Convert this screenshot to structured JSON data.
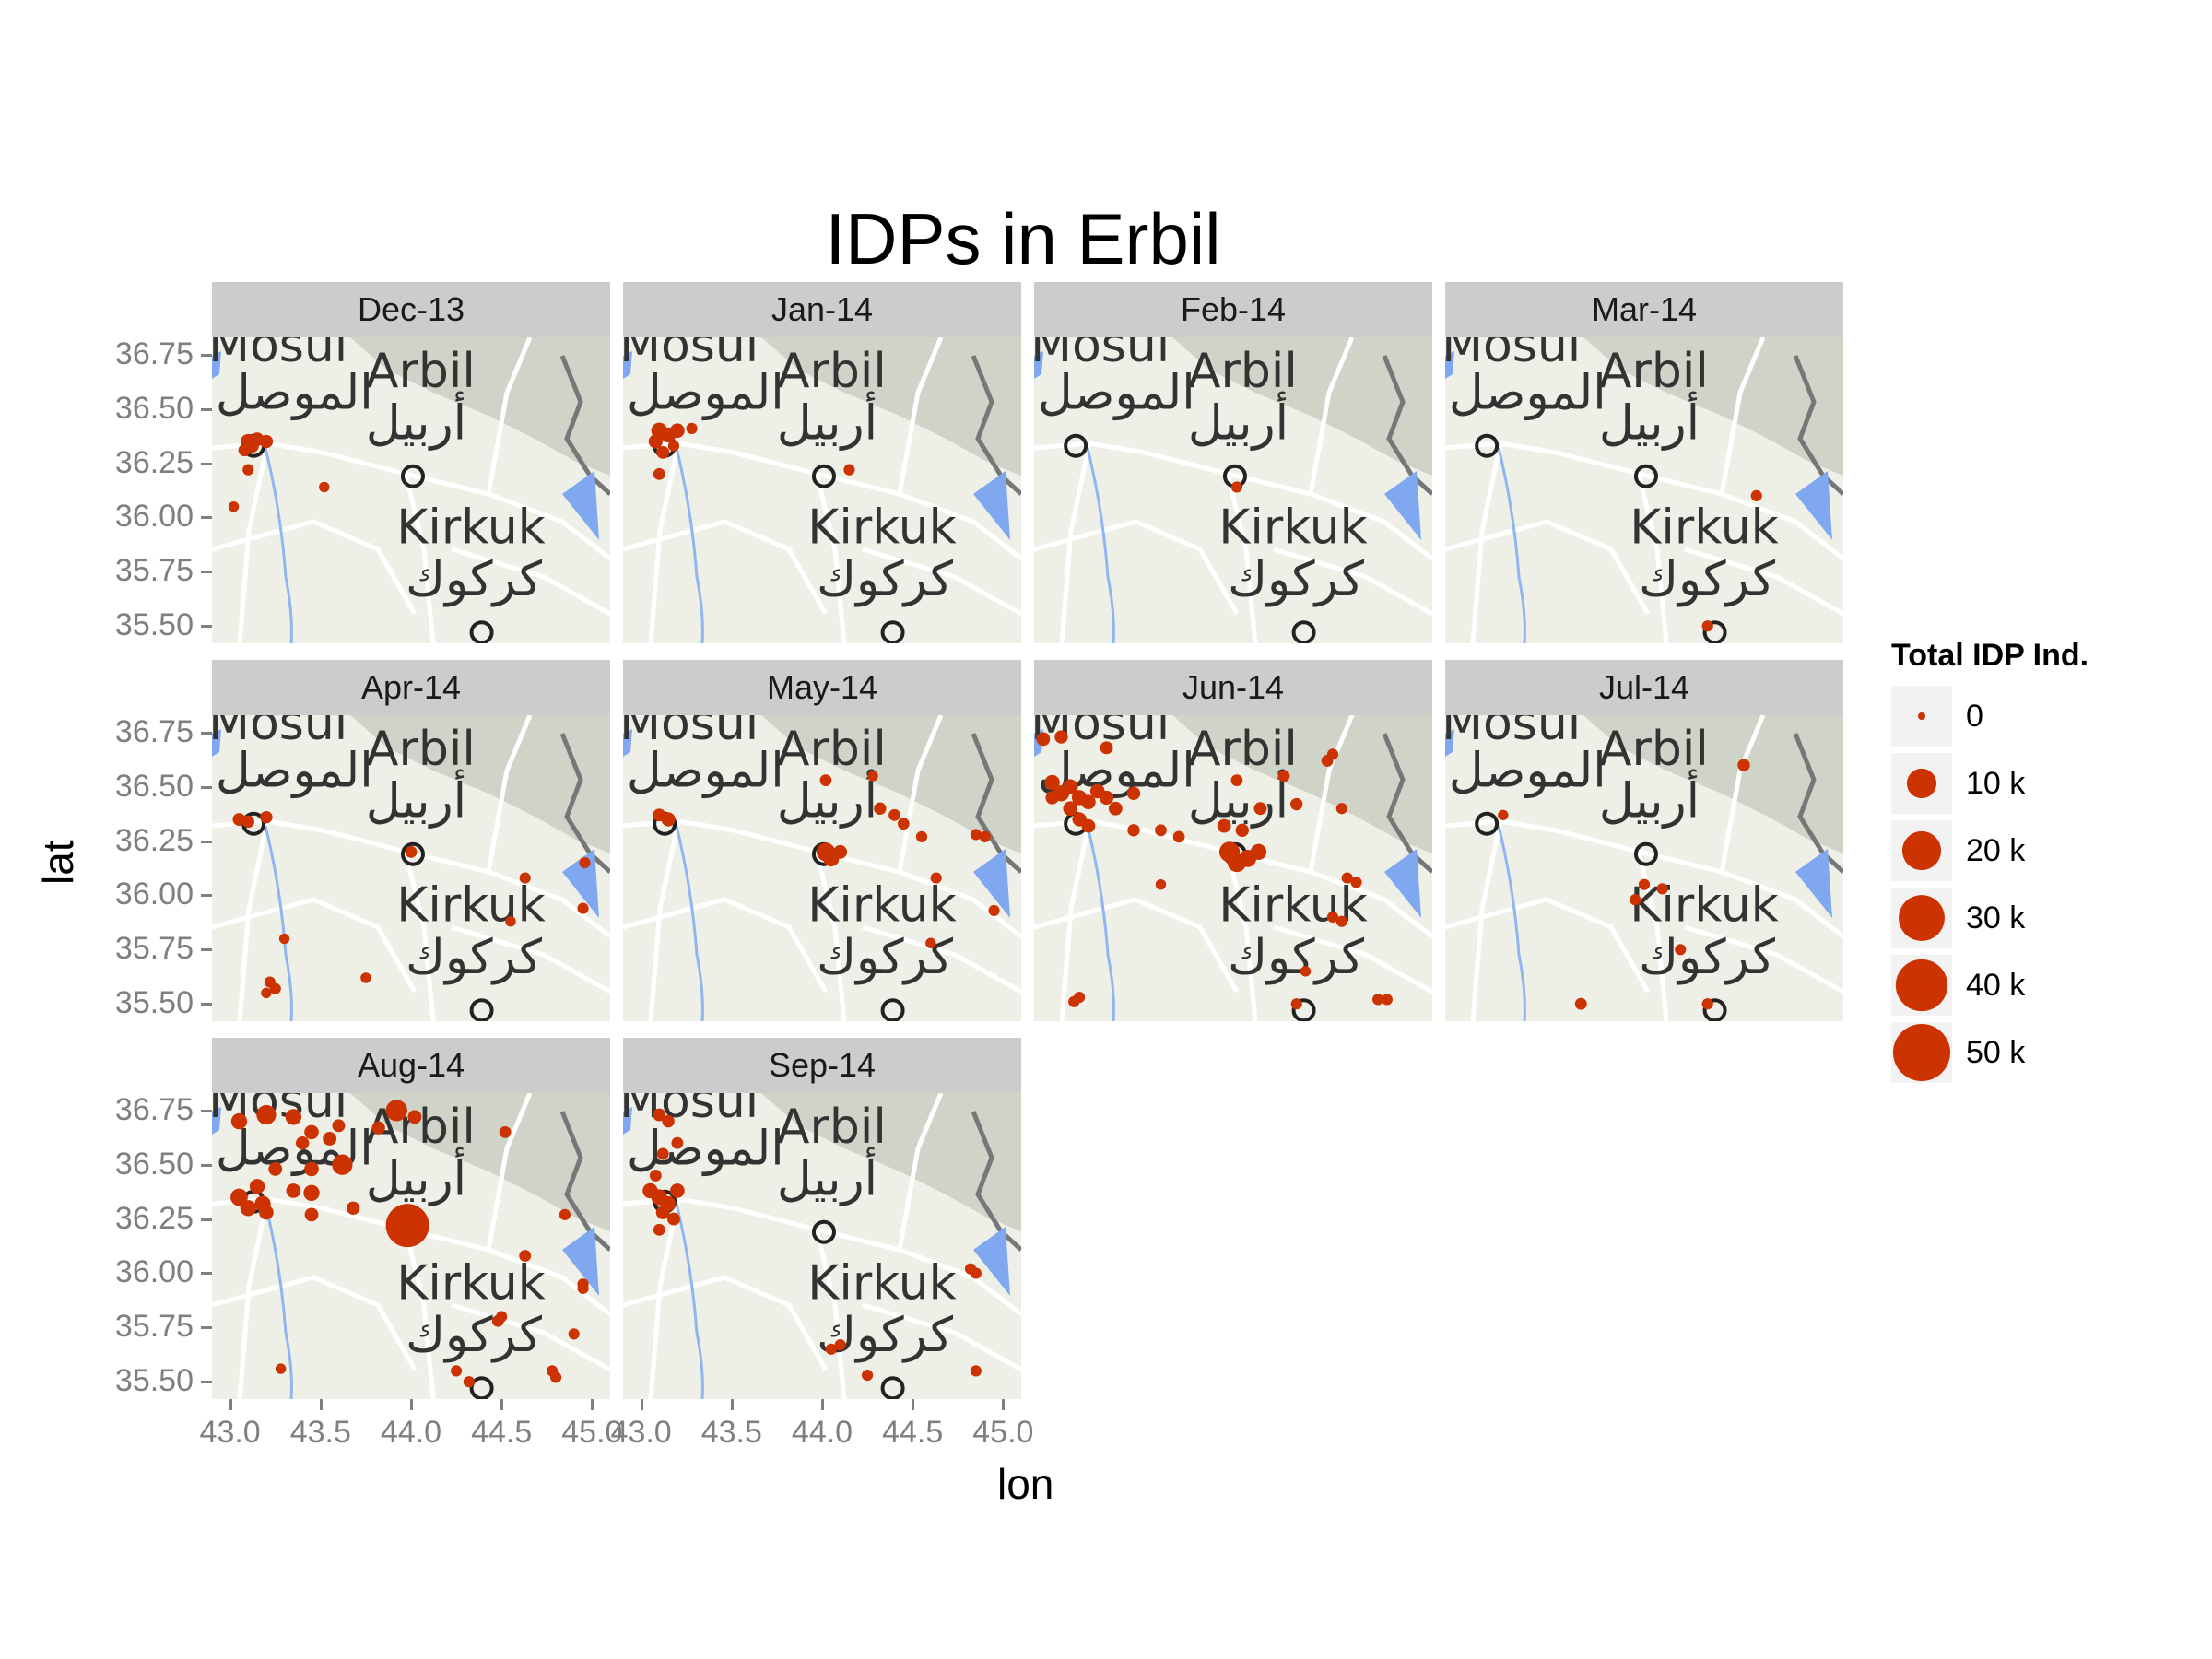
{
  "title": "IDPs in Erbil",
  "chart_data": {
    "type": "scatter",
    "title": "IDPs in Erbil",
    "xlabel": "lon",
    "ylabel": "lat",
    "xlim": [
      42.9,
      45.1
    ],
    "ylim": [
      35.42,
      36.83
    ],
    "x_ticks": [
      "43.0",
      "43.5",
      "44.0",
      "44.5",
      "45.0"
    ],
    "y_ticks": [
      "36.75",
      "36.50",
      "36.25",
      "36.00",
      "35.75",
      "35.50"
    ],
    "x_tick_values": [
      43.0,
      43.5,
      44.0,
      44.5,
      45.0
    ],
    "y_tick_values": [
      36.75,
      36.5,
      36.25,
      36.0,
      35.75,
      35.5
    ],
    "point_color": "#cc3300",
    "legend": {
      "title": "Total IDP Ind.",
      "position": "right",
      "entries": [
        {
          "label": "0",
          "value": 0
        },
        {
          "label": "10 k",
          "value": 10000
        },
        {
          "label": "20 k",
          "value": 20000
        },
        {
          "label": "30 k",
          "value": 30000
        },
        {
          "label": "40 k",
          "value": 40000
        },
        {
          "label": "50 k",
          "value": 50000
        }
      ]
    },
    "map_labels": [
      {
        "text": "Mosul",
        "lon": 42.88,
        "lat": 36.72
      },
      {
        "text": "الموصل",
        "lon": 42.92,
        "lat": 36.5
      },
      {
        "text": "Arbil",
        "lon": 43.75,
        "lat": 36.6
      },
      {
        "text": "أربيل",
        "lon": 43.75,
        "lat": 36.36
      },
      {
        "text": "Kirkuk",
        "lon": 43.92,
        "lat": 35.88
      },
      {
        "text": "كركوك",
        "lon": 43.97,
        "lat": 35.64
      }
    ],
    "facets": [
      {
        "label": "Dec-13",
        "points": [
          {
            "lon": 43.1,
            "lat": 36.35,
            "v": 1200
          },
          {
            "lon": 43.12,
            "lat": 36.33,
            "v": 900
          },
          {
            "lon": 43.15,
            "lat": 36.36,
            "v": 800
          },
          {
            "lon": 43.2,
            "lat": 36.35,
            "v": 700
          },
          {
            "lon": 43.08,
            "lat": 36.31,
            "v": 500
          },
          {
            "lon": 43.1,
            "lat": 36.22,
            "v": 300
          },
          {
            "lon": 43.02,
            "lat": 36.05,
            "v": 200
          },
          {
            "lon": 43.52,
            "lat": 36.14,
            "v": 200
          }
        ]
      },
      {
        "label": "Jan-14",
        "points": [
          {
            "lon": 43.1,
            "lat": 36.4,
            "v": 1500
          },
          {
            "lon": 43.15,
            "lat": 36.38,
            "v": 1200
          },
          {
            "lon": 43.2,
            "lat": 36.4,
            "v": 1000
          },
          {
            "lon": 43.08,
            "lat": 36.35,
            "v": 900
          },
          {
            "lon": 43.12,
            "lat": 36.3,
            "v": 600
          },
          {
            "lon": 43.1,
            "lat": 36.2,
            "v": 400
          },
          {
            "lon": 43.28,
            "lat": 36.41,
            "v": 300
          },
          {
            "lon": 43.18,
            "lat": 36.33,
            "v": 300
          },
          {
            "lon": 44.15,
            "lat": 36.22,
            "v": 300
          }
        ]
      },
      {
        "label": "Feb-14",
        "points": [
          {
            "lon": 44.02,
            "lat": 36.14,
            "v": 300
          }
        ]
      },
      {
        "label": "Mar-14",
        "points": [
          {
            "lon": 44.62,
            "lat": 36.1,
            "v": 300
          },
          {
            "lon": 44.35,
            "lat": 35.5,
            "v": 300
          }
        ]
      },
      {
        "label": "Apr-14",
        "points": [
          {
            "lon": 43.05,
            "lat": 36.35,
            "v": 600
          },
          {
            "lon": 43.1,
            "lat": 36.34,
            "v": 500
          },
          {
            "lon": 43.2,
            "lat": 36.36,
            "v": 500
          },
          {
            "lon": 44.0,
            "lat": 36.2,
            "v": 400
          },
          {
            "lon": 44.63,
            "lat": 36.08,
            "v": 300
          },
          {
            "lon": 44.96,
            "lat": 36.15,
            "v": 300
          },
          {
            "lon": 44.95,
            "lat": 35.94,
            "v": 300
          },
          {
            "lon": 44.55,
            "lat": 35.88,
            "v": 200
          },
          {
            "lon": 43.3,
            "lat": 35.8,
            "v": 200
          },
          {
            "lon": 43.22,
            "lat": 35.6,
            "v": 300
          },
          {
            "lon": 43.25,
            "lat": 35.57,
            "v": 300
          },
          {
            "lon": 43.2,
            "lat": 35.55,
            "v": 200
          },
          {
            "lon": 43.75,
            "lat": 35.62,
            "v": 200
          }
        ]
      },
      {
        "label": "May-14",
        "points": [
          {
            "lon": 43.15,
            "lat": 36.35,
            "v": 900
          },
          {
            "lon": 43.1,
            "lat": 36.37,
            "v": 600
          },
          {
            "lon": 44.02,
            "lat": 36.2,
            "v": 2500
          },
          {
            "lon": 44.05,
            "lat": 36.17,
            "v": 1500
          },
          {
            "lon": 44.1,
            "lat": 36.2,
            "v": 800
          },
          {
            "lon": 44.02,
            "lat": 36.53,
            "v": 400
          },
          {
            "lon": 44.32,
            "lat": 36.4,
            "v": 500
          },
          {
            "lon": 44.4,
            "lat": 36.37,
            "v": 400
          },
          {
            "lon": 44.45,
            "lat": 36.33,
            "v": 400
          },
          {
            "lon": 44.55,
            "lat": 36.27,
            "v": 300
          },
          {
            "lon": 44.63,
            "lat": 36.08,
            "v": 300
          },
          {
            "lon": 44.85,
            "lat": 36.28,
            "v": 300
          },
          {
            "lon": 44.9,
            "lat": 36.27,
            "v": 300
          },
          {
            "lon": 44.95,
            "lat": 35.93,
            "v": 300
          },
          {
            "lon": 44.6,
            "lat": 35.78,
            "v": 200
          },
          {
            "lon": 44.28,
            "lat": 36.55,
            "v": 200
          }
        ]
      },
      {
        "label": "Jun-14",
        "points": [
          {
            "lon": 43.0,
            "lat": 36.52,
            "v": 1200
          },
          {
            "lon": 43.05,
            "lat": 36.47,
            "v": 1500
          },
          {
            "lon": 43.1,
            "lat": 36.5,
            "v": 1200
          },
          {
            "lon": 43.15,
            "lat": 36.45,
            "v": 1200
          },
          {
            "lon": 43.2,
            "lat": 36.43,
            "v": 1000
          },
          {
            "lon": 43.25,
            "lat": 36.48,
            "v": 1000
          },
          {
            "lon": 43.3,
            "lat": 36.45,
            "v": 900
          },
          {
            "lon": 43.1,
            "lat": 36.4,
            "v": 1000
          },
          {
            "lon": 43.15,
            "lat": 36.35,
            "v": 900
          },
          {
            "lon": 43.2,
            "lat": 36.32,
            "v": 800
          },
          {
            "lon": 43.35,
            "lat": 36.4,
            "v": 800
          },
          {
            "lon": 43.45,
            "lat": 36.47,
            "v": 700
          },
          {
            "lon": 43.0,
            "lat": 36.45,
            "v": 700
          },
          {
            "lon": 42.95,
            "lat": 36.72,
            "v": 800
          },
          {
            "lon": 43.05,
            "lat": 36.73,
            "v": 700
          },
          {
            "lon": 43.3,
            "lat": 36.68,
            "v": 600
          },
          {
            "lon": 43.45,
            "lat": 36.3,
            "v": 500
          },
          {
            "lon": 43.6,
            "lat": 36.3,
            "v": 400
          },
          {
            "lon": 43.7,
            "lat": 36.27,
            "v": 400
          },
          {
            "lon": 43.98,
            "lat": 36.2,
            "v": 3500
          },
          {
            "lon": 44.02,
            "lat": 36.15,
            "v": 2500
          },
          {
            "lon": 44.08,
            "lat": 36.17,
            "v": 2000
          },
          {
            "lon": 44.14,
            "lat": 36.2,
            "v": 1500
          },
          {
            "lon": 43.95,
            "lat": 36.32,
            "v": 800
          },
          {
            "lon": 44.05,
            "lat": 36.3,
            "v": 700
          },
          {
            "lon": 44.15,
            "lat": 36.4,
            "v": 600
          },
          {
            "lon": 44.35,
            "lat": 36.42,
            "v": 500
          },
          {
            "lon": 44.28,
            "lat": 36.55,
            "v": 400
          },
          {
            "lon": 44.02,
            "lat": 36.53,
            "v": 400
          },
          {
            "lon": 44.52,
            "lat": 36.62,
            "v": 400
          },
          {
            "lon": 44.55,
            "lat": 36.65,
            "v": 300
          },
          {
            "lon": 44.6,
            "lat": 36.4,
            "v": 300
          },
          {
            "lon": 44.63,
            "lat": 36.08,
            "v": 300
          },
          {
            "lon": 44.68,
            "lat": 36.06,
            "v": 300
          },
          {
            "lon": 44.55,
            "lat": 35.9,
            "v": 300
          },
          {
            "lon": 44.6,
            "lat": 35.88,
            "v": 300
          },
          {
            "lon": 44.35,
            "lat": 35.5,
            "v": 300
          },
          {
            "lon": 44.8,
            "lat": 35.52,
            "v": 300
          },
          {
            "lon": 44.85,
            "lat": 35.52,
            "v": 300
          },
          {
            "lon": 43.15,
            "lat": 35.53,
            "v": 300
          },
          {
            "lon": 43.12,
            "lat": 35.51,
            "v": 300
          },
          {
            "lon": 43.6,
            "lat": 36.05,
            "v": 200
          },
          {
            "lon": 44.4,
            "lat": 35.65,
            "v": 200
          }
        ]
      },
      {
        "label": "Jul-14",
        "points": [
          {
            "lon": 43.22,
            "lat": 36.37,
            "v": 200
          },
          {
            "lon": 44.0,
            "lat": 36.05,
            "v": 300
          },
          {
            "lon": 43.95,
            "lat": 35.98,
            "v": 300
          },
          {
            "lon": 44.1,
            "lat": 36.03,
            "v": 300
          },
          {
            "lon": 44.2,
            "lat": 35.75,
            "v": 300
          },
          {
            "lon": 43.65,
            "lat": 35.5,
            "v": 400
          },
          {
            "lon": 44.35,
            "lat": 35.5,
            "v": 300
          },
          {
            "lon": 44.55,
            "lat": 36.6,
            "v": 500
          }
        ]
      },
      {
        "label": "Aug-14",
        "points": [
          {
            "lon": 43.05,
            "lat": 36.7,
            "v": 1500
          },
          {
            "lon": 43.2,
            "lat": 36.73,
            "v": 3000
          },
          {
            "lon": 43.35,
            "lat": 36.72,
            "v": 1500
          },
          {
            "lon": 43.45,
            "lat": 36.65,
            "v": 1000
          },
          {
            "lon": 43.55,
            "lat": 36.62,
            "v": 800
          },
          {
            "lon": 43.4,
            "lat": 36.6,
            "v": 700
          },
          {
            "lon": 43.6,
            "lat": 36.68,
            "v": 600
          },
          {
            "lon": 43.62,
            "lat": 36.5,
            "v": 3500
          },
          {
            "lon": 43.45,
            "lat": 36.48,
            "v": 1000
          },
          {
            "lon": 43.05,
            "lat": 36.35,
            "v": 2000
          },
          {
            "lon": 43.1,
            "lat": 36.3,
            "v": 1500
          },
          {
            "lon": 43.18,
            "lat": 36.32,
            "v": 1500
          },
          {
            "lon": 43.15,
            "lat": 36.4,
            "v": 1200
          },
          {
            "lon": 43.2,
            "lat": 36.28,
            "v": 1000
          },
          {
            "lon": 43.35,
            "lat": 36.38,
            "v": 1000
          },
          {
            "lon": 43.45,
            "lat": 36.37,
            "v": 1500
          },
          {
            "lon": 43.25,
            "lat": 36.48,
            "v": 800
          },
          {
            "lon": 43.45,
            "lat": 36.27,
            "v": 800
          },
          {
            "lon": 43.68,
            "lat": 36.3,
            "v": 700
          },
          {
            "lon": 43.92,
            "lat": 36.75,
            "v": 4000
          },
          {
            "lon": 44.02,
            "lat": 36.72,
            "v": 800
          },
          {
            "lon": 43.82,
            "lat": 36.67,
            "v": 700
          },
          {
            "lon": 43.98,
            "lat": 36.22,
            "v": 26000
          },
          {
            "lon": 44.52,
            "lat": 36.65,
            "v": 400
          },
          {
            "lon": 44.63,
            "lat": 36.08,
            "v": 400
          },
          {
            "lon": 44.85,
            "lat": 36.27,
            "v": 300
          },
          {
            "lon": 44.95,
            "lat": 35.95,
            "v": 300
          },
          {
            "lon": 44.95,
            "lat": 35.93,
            "v": 300
          },
          {
            "lon": 44.9,
            "lat": 35.72,
            "v": 300
          },
          {
            "lon": 44.48,
            "lat": 35.78,
            "v": 400
          },
          {
            "lon": 44.5,
            "lat": 35.8,
            "v": 300
          },
          {
            "lon": 44.25,
            "lat": 35.55,
            "v": 300
          },
          {
            "lon": 44.8,
            "lat": 35.52,
            "v": 300
          },
          {
            "lon": 44.78,
            "lat": 35.55,
            "v": 300
          },
          {
            "lon": 44.32,
            "lat": 35.5,
            "v": 300
          },
          {
            "lon": 43.28,
            "lat": 35.56,
            "v": 200
          }
        ]
      },
      {
        "label": "Sep-14",
        "points": [
          {
            "lon": 43.1,
            "lat": 36.73,
            "v": 600
          },
          {
            "lon": 43.15,
            "lat": 36.7,
            "v": 500
          },
          {
            "lon": 43.2,
            "lat": 36.6,
            "v": 400
          },
          {
            "lon": 43.12,
            "lat": 36.55,
            "v": 400
          },
          {
            "lon": 43.08,
            "lat": 36.45,
            "v": 400
          },
          {
            "lon": 43.05,
            "lat": 36.38,
            "v": 1200
          },
          {
            "lon": 43.1,
            "lat": 36.35,
            "v": 1500
          },
          {
            "lon": 43.15,
            "lat": 36.32,
            "v": 1200
          },
          {
            "lon": 43.2,
            "lat": 36.38,
            "v": 1000
          },
          {
            "lon": 43.12,
            "lat": 36.28,
            "v": 800
          },
          {
            "lon": 43.18,
            "lat": 36.25,
            "v": 600
          },
          {
            "lon": 43.1,
            "lat": 36.2,
            "v": 400
          },
          {
            "lon": 44.82,
            "lat": 36.02,
            "v": 300
          },
          {
            "lon": 44.85,
            "lat": 36.0,
            "v": 300
          },
          {
            "lon": 44.05,
            "lat": 35.65,
            "v": 300
          },
          {
            "lon": 44.1,
            "lat": 35.67,
            "v": 300
          },
          {
            "lon": 44.25,
            "lat": 35.53,
            "v": 300
          },
          {
            "lon": 44.85,
            "lat": 35.55,
            "v": 300
          }
        ]
      }
    ]
  }
}
